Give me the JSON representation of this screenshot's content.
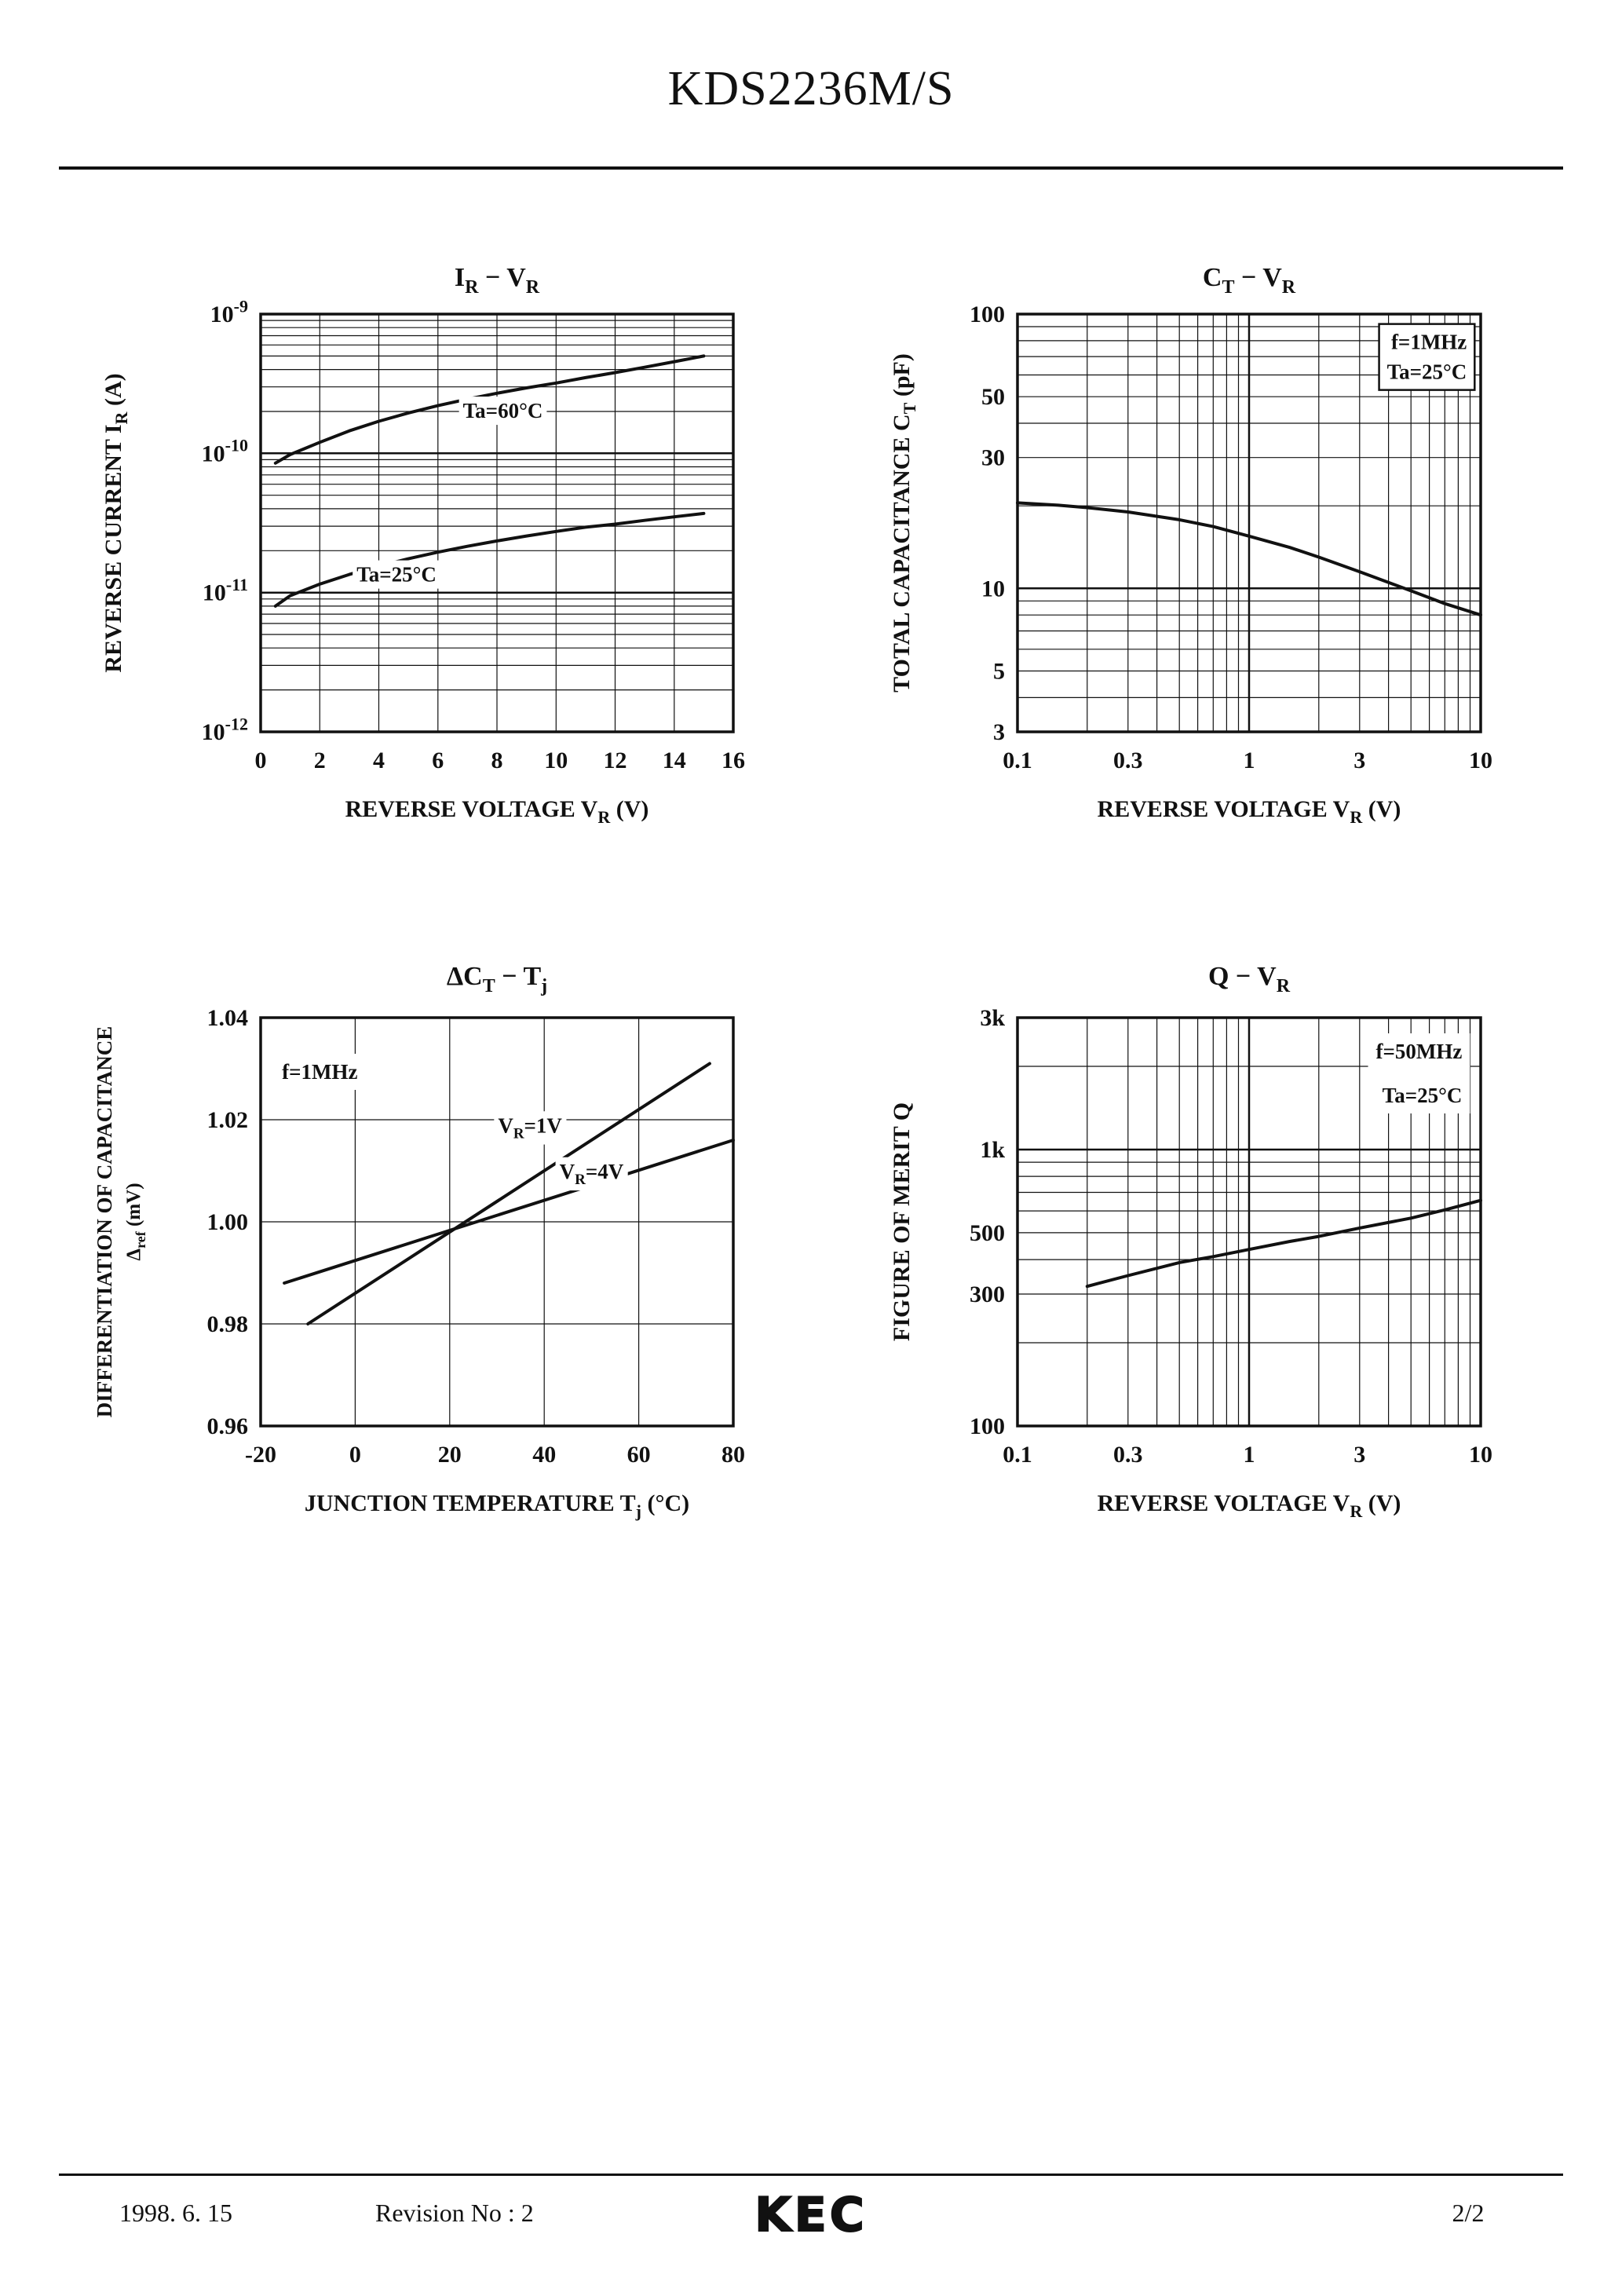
{
  "page": {
    "doc_title": "KDS2236M/S",
    "footer": {
      "date": "1998. 6. 15",
      "revision": "Revision No : 2",
      "logo": "KEC",
      "page_number": "2/2"
    }
  },
  "chart_data": [
    {
      "id": "ir-vr",
      "type": "line",
      "title": "I~R~ − V~R~",
      "x": {
        "scale": "linear",
        "min": 0,
        "max": 16,
        "grid_step": 2,
        "label": "REVERSE VOLTAGE V~R~ (V)",
        "ticks": [
          {
            "v": 0,
            "l": "0"
          },
          {
            "v": 2,
            "l": "2"
          },
          {
            "v": 4,
            "l": "4"
          },
          {
            "v": 6,
            "l": "6"
          },
          {
            "v": 8,
            "l": "8"
          },
          {
            "v": 10,
            "l": "10"
          },
          {
            "v": 12,
            "l": "12"
          },
          {
            "v": 14,
            "l": "14"
          },
          {
            "v": 16,
            "l": "16"
          }
        ]
      },
      "y": {
        "scale": "log",
        "min": 1e-12,
        "max": 1e-09,
        "label": "REVERSE CURRENT I~R~ (A)",
        "ticks": [
          {
            "v": 1e-09,
            "l": "10^-9^"
          },
          {
            "v": 1e-10,
            "l": "10^-10^"
          },
          {
            "v": 1e-11,
            "l": "10^-11^"
          },
          {
            "v": 1e-12,
            "l": "10^-12^"
          }
        ]
      },
      "series": [
        {
          "name": "Ta=60°C",
          "label_at": [
            8.2,
            1.8e-10
          ],
          "points": [
            [
              0.5,
              8.5e-11
            ],
            [
              1,
              9.8e-11
            ],
            [
              2,
              1.2e-10
            ],
            [
              3,
              1.45e-10
            ],
            [
              4,
              1.7e-10
            ],
            [
              5,
              1.95e-10
            ],
            [
              6,
              2.2e-10
            ],
            [
              7,
              2.45e-10
            ],
            [
              8,
              2.7e-10
            ],
            [
              9,
              2.95e-10
            ],
            [
              10,
              3.2e-10
            ],
            [
              11,
              3.5e-10
            ],
            [
              12,
              3.8e-10
            ],
            [
              13,
              4.15e-10
            ],
            [
              14,
              4.55e-10
            ],
            [
              15,
              5e-10
            ]
          ]
        },
        {
          "name": "Ta=25°C",
          "label_at": [
            4.6,
            1.2e-11
          ],
          "points": [
            [
              0.5,
              8e-12
            ],
            [
              1,
              9.5e-12
            ],
            [
              2,
              1.15e-11
            ],
            [
              3,
              1.35e-11
            ],
            [
              4,
              1.55e-11
            ],
            [
              5,
              1.75e-11
            ],
            [
              6,
              1.95e-11
            ],
            [
              7,
              2.15e-11
            ],
            [
              8,
              2.35e-11
            ],
            [
              9,
              2.55e-11
            ],
            [
              10,
              2.75e-11
            ],
            [
              11,
              2.95e-11
            ],
            [
              12,
              3.1e-11
            ],
            [
              13,
              3.3e-11
            ],
            [
              14,
              3.5e-11
            ],
            [
              15,
              3.7e-11
            ]
          ]
        }
      ],
      "notes": []
    },
    {
      "id": "ct-vr",
      "type": "line",
      "title": "C~T~ − V~R~",
      "x": {
        "scale": "log",
        "min": 0.1,
        "max": 10,
        "label": "REVERSE VOLTAGE V~R~ (V)",
        "ticks": [
          {
            "v": 0.1,
            "l": "0.1"
          },
          {
            "v": 0.3,
            "l": "0.3"
          },
          {
            "v": 1,
            "l": "1"
          },
          {
            "v": 3,
            "l": "3"
          },
          {
            "v": 10,
            "l": "10"
          }
        ]
      },
      "y": {
        "scale": "log",
        "min": 3,
        "max": 100,
        "label": "TOTAL CAPACITANCE C~T~ (pF)",
        "ticks": [
          {
            "v": 100,
            "l": "100"
          },
          {
            "v": 50,
            "l": "50"
          },
          {
            "v": 30,
            "l": "30"
          },
          {
            "v": 10,
            "l": "10"
          },
          {
            "v": 5,
            "l": "5"
          },
          {
            "v": 3,
            "l": "3"
          }
        ]
      },
      "series": [
        {
          "name": "CT",
          "points": [
            [
              0.1,
              20.5
            ],
            [
              0.15,
              20.1
            ],
            [
              0.2,
              19.7
            ],
            [
              0.3,
              19.0
            ],
            [
              0.5,
              17.8
            ],
            [
              0.7,
              16.8
            ],
            [
              1,
              15.5
            ],
            [
              1.5,
              14.1
            ],
            [
              2,
              13.0
            ],
            [
              3,
              11.5
            ],
            [
              5,
              9.8
            ],
            [
              7,
              8.8
            ],
            [
              10,
              8.0
            ]
          ]
        }
      ],
      "notes": [
        {
          "lines": [
            "f=1MHz",
            "Ta=25°C"
          ],
          "rx": 0.97,
          "ry": 0.035,
          "lh": 38,
          "anchor": "end",
          "boxed": true
        }
      ]
    },
    {
      "id": "dct-tj",
      "type": "line",
      "title": "ΔC~T~ − T~j~",
      "x": {
        "scale": "linear",
        "min": -20,
        "max": 80,
        "grid_step": 20,
        "label": "JUNCTION TEMPERATURE T~j~  (°C)",
        "ticks": [
          {
            "v": -20,
            "l": "-20"
          },
          {
            "v": 0,
            "l": "0"
          },
          {
            "v": 20,
            "l": "20"
          },
          {
            "v": 40,
            "l": "40"
          },
          {
            "v": 60,
            "l": "60"
          },
          {
            "v": 80,
            "l": "80"
          }
        ]
      },
      "y": {
        "scale": "linear",
        "min": 0.96,
        "max": 1.04,
        "grid_step": 0.02,
        "label": "DIFFERENTIATION OF CAPACITANCE",
        "label2": "Δ~ref~ (mV)",
        "ticks": [
          {
            "v": 1.04,
            "l": "1.04"
          },
          {
            "v": 1.02,
            "l": "1.02"
          },
          {
            "v": 1.0,
            "l": "1.00"
          },
          {
            "v": 0.98,
            "l": "0.98"
          },
          {
            "v": 0.96,
            "l": "0.96"
          }
        ]
      },
      "series": [
        {
          "name": "V~R~=1V",
          "label_at": [
            37,
            1.0175
          ],
          "points": [
            [
              -10,
              0.98
            ],
            [
              75,
              1.031
            ]
          ]
        },
        {
          "name": "V~R~=4V",
          "label_at": [
            50,
            1.0085
          ],
          "points": [
            [
              -15,
              0.988
            ],
            [
              80,
              1.016
            ]
          ]
        }
      ],
      "notes": [
        {
          "lines": [
            "f=1MHz"
          ],
          "rx": 0.045,
          "ry": 0.1,
          "lh": 38,
          "anchor": "start",
          "boxed": false
        }
      ]
    },
    {
      "id": "q-vr",
      "type": "line",
      "title": "Q − V~R~",
      "x": {
        "scale": "log",
        "min": 0.1,
        "max": 10,
        "label": "REVERSE VOLTAGE V~R~ (V)",
        "ticks": [
          {
            "v": 0.1,
            "l": "0.1"
          },
          {
            "v": 0.3,
            "l": "0.3"
          },
          {
            "v": 1,
            "l": "1"
          },
          {
            "v": 3,
            "l": "3"
          },
          {
            "v": 10,
            "l": "10"
          }
        ]
      },
      "y": {
        "scale": "log",
        "min": 100,
        "max": 3000,
        "label": "FIGURE OF MERIT Q",
        "ticks": [
          {
            "v": 3000,
            "l": "3k"
          },
          {
            "v": 1000,
            "l": "1k"
          },
          {
            "v": 500,
            "l": "500"
          },
          {
            "v": 300,
            "l": "300"
          },
          {
            "v": 100,
            "l": "100"
          }
        ]
      },
      "series": [
        {
          "name": "Q",
          "points": [
            [
              0.2,
              320
            ],
            [
              0.3,
              350
            ],
            [
              0.5,
              390
            ],
            [
              0.7,
              410
            ],
            [
              1,
              435
            ],
            [
              1.5,
              465
            ],
            [
              2,
              485
            ],
            [
              3,
              520
            ],
            [
              5,
              565
            ],
            [
              7,
              605
            ],
            [
              10,
              655
            ]
          ]
        }
      ],
      "notes": [
        {
          "lines": [
            "f=50MHz",
            "Ta=25°C"
          ],
          "rx": 0.96,
          "ry": 0.05,
          "lh": 56,
          "anchor": "end",
          "boxed": false
        }
      ]
    }
  ]
}
